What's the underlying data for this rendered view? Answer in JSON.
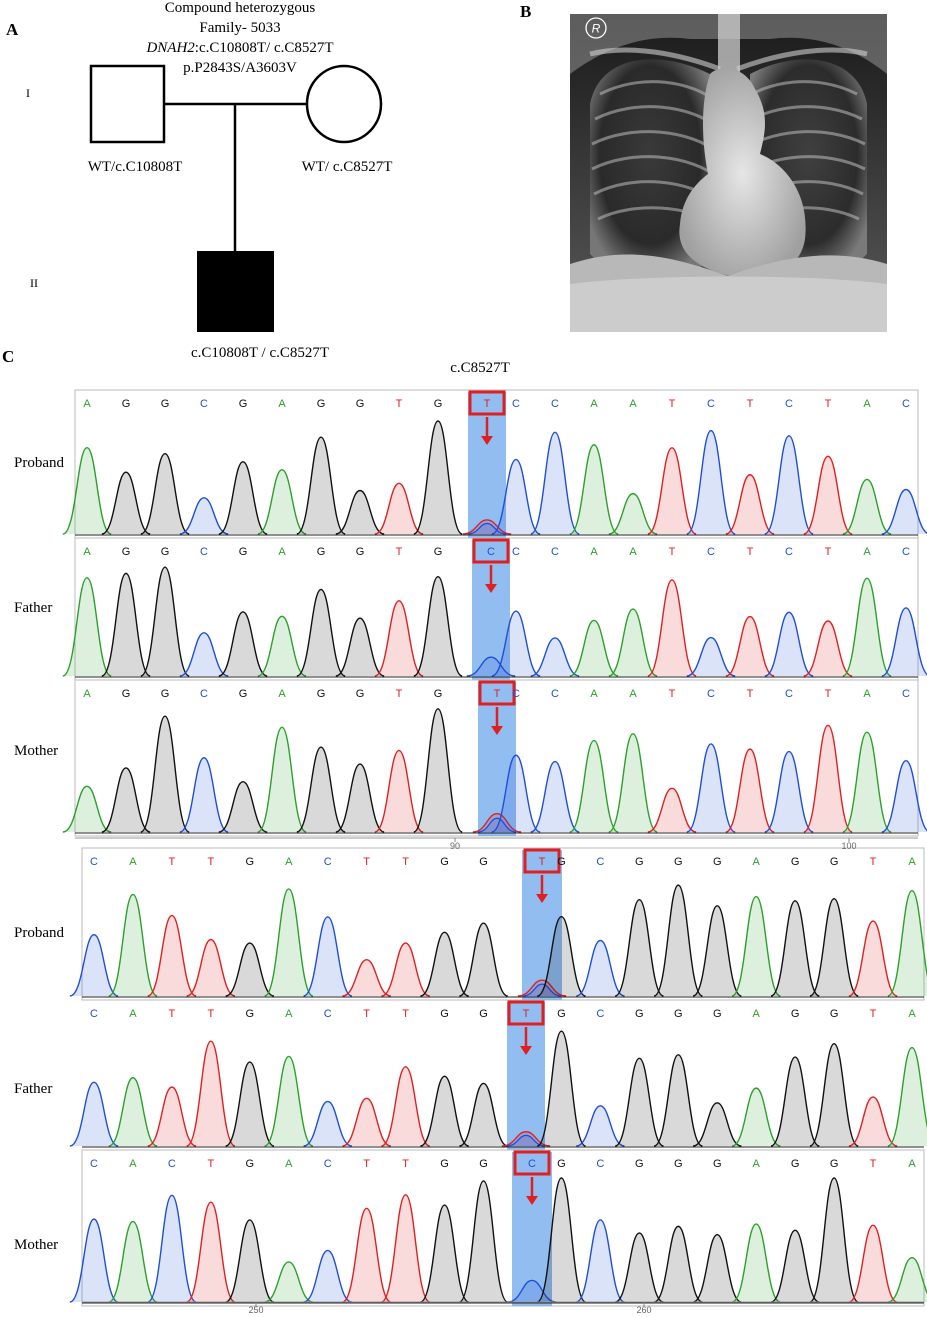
{
  "panels": {
    "a": "A",
    "b": "B",
    "c": "C"
  },
  "pedigree": {
    "header": {
      "line1": "Compound heterozygous",
      "line2": "Family- 5033",
      "line3_gene": "DNAH2",
      "line3_rest": ":c.C10808T/ c.C8527T",
      "line4": "p.P2843S/A3603V"
    },
    "generations": [
      "I",
      "II"
    ],
    "father_genotype": "WT/c.C10808T",
    "mother_genotype": "WT/ c.C8527T",
    "proband_genotype": "c.C10808T / c.C8527T"
  },
  "xray": {
    "marker": "R"
  },
  "chromatogram_top": {
    "title": "c.C8527T",
    "axis_ticks": [
      "90",
      "100"
    ],
    "tracks": [
      {
        "label": "Proband",
        "bases": [
          "A",
          "G",
          "G",
          "C",
          "G",
          "A",
          "G",
          "G",
          "T",
          "G",
          "T",
          "C",
          "C",
          "A",
          "A",
          "T",
          "C",
          "T",
          "C",
          "T",
          "A",
          "C"
        ],
        "highlight_base": "T"
      },
      {
        "label": "Father",
        "bases": [
          "A",
          "G",
          "G",
          "C",
          "G",
          "A",
          "G",
          "G",
          "T",
          "G",
          "C",
          "C",
          "C",
          "A",
          "A",
          "T",
          "C",
          "T",
          "C",
          "T",
          "A",
          "C"
        ],
        "highlight_base": "C"
      },
      {
        "label": "Mother",
        "bases": [
          "A",
          "G",
          "G",
          "C",
          "G",
          "A",
          "G",
          "G",
          "T",
          "G",
          "T",
          "C",
          "C",
          "A",
          "A",
          "T",
          "C",
          "T",
          "C",
          "T",
          "A",
          "C"
        ],
        "highlight_base": "T"
      }
    ]
  },
  "chromatogram_bottom": {
    "axis_ticks": [
      "250",
      "260"
    ],
    "tracks": [
      {
        "label": "Proband",
        "bases": [
          "C",
          "A",
          "T",
          "T",
          "G",
          "A",
          "C",
          "T",
          "T",
          "G",
          "G",
          "T",
          "G",
          "C",
          "G",
          "G",
          "G",
          "A",
          "G",
          "G",
          "T",
          "A"
        ],
        "highlight_base": "T"
      },
      {
        "label": "Father",
        "bases": [
          "C",
          "A",
          "T",
          "T",
          "G",
          "A",
          "C",
          "T",
          "T",
          "G",
          "G",
          "T",
          "G",
          "C",
          "G",
          "G",
          "G",
          "A",
          "G",
          "G",
          "T",
          "A"
        ],
        "highlight_base": "T"
      },
      {
        "label": "Mother",
        "bases": [
          "C",
          "A",
          "C",
          "T",
          "G",
          "A",
          "C",
          "T",
          "T",
          "G",
          "G",
          "C",
          "G",
          "C",
          "G",
          "G",
          "G",
          "A",
          "G",
          "G",
          "T",
          "A"
        ],
        "highlight_base": "C"
      }
    ]
  },
  "colors": {
    "A": "#2ca02c",
    "C": "#1f4fd8",
    "G": "#111111",
    "T": "#e02020",
    "highlight": "#7fb2ef",
    "box": "#e02020"
  }
}
